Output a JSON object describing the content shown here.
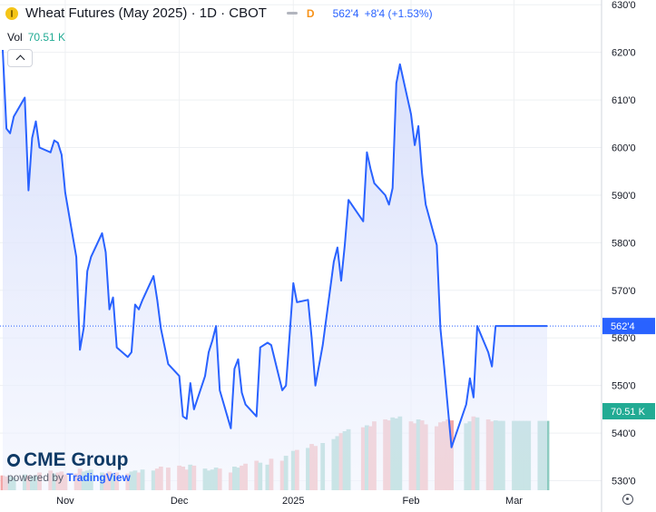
{
  "header": {
    "title": "Wheat Futures (May 2025) · 1D · CBOT",
    "interval_badge": "D",
    "last_price": "562'4",
    "change": "+8'4 (+1.53%)",
    "volume_label": "Vol",
    "volume_value": "70.51 K"
  },
  "branding": {
    "brand": "CME Group",
    "powered_by": "powered by",
    "provider": "TradingView"
  },
  "icons": {
    "symbol": "wheat-symbol-icon",
    "visibility": "eye-icon",
    "collapse": "chevron-up-icon",
    "settings": "gear-icon",
    "brand": "cme-globe-icon"
  },
  "colors": {
    "line": "#2962ff",
    "area_top": "#d4dcfb",
    "area_bottom": "#f1f4fe",
    "vol_up": "#8ccbc0",
    "vol_down": "#f2a6a6",
    "price_tag": "#2962ff",
    "vol_tag": "#22ab94",
    "grid": "#eef0f3",
    "axis_text": "#131722"
  },
  "chart_data": {
    "type": "line",
    "title": "Wheat Futures (May 2025) · 1D · CBOT",
    "xlabel": "",
    "ylabel": "",
    "x_tick_labels": [
      "Nov",
      "Dec",
      "2025",
      "Feb",
      "Mar"
    ],
    "y_tick_labels": [
      "530'0",
      "540'0",
      "550'0",
      "560'0",
      "570'0",
      "580'0",
      "590'0",
      "600'0",
      "610'0",
      "620'0",
      "630'0"
    ],
    "y_ticks": [
      530,
      540,
      550,
      560,
      570,
      580,
      590,
      600,
      610,
      620,
      630
    ],
    "ylim": [
      528,
      631
    ],
    "grid": true,
    "last_price": 562.5,
    "last_price_label": "562'4",
    "volume_label": "70.51 K",
    "x_range": [
      "2024-10-15",
      "2025-03-12"
    ],
    "price": {
      "dates": [
        "2024-10-15",
        "2024-10-16",
        "2024-10-17",
        "2024-10-18",
        "2024-10-21",
        "2024-10-22",
        "2024-10-23",
        "2024-10-24",
        "2024-10-25",
        "2024-10-28",
        "2024-10-29",
        "2024-10-30",
        "2024-10-31",
        "2024-11-01",
        "2024-11-04",
        "2024-11-05",
        "2024-11-06",
        "2024-11-07",
        "2024-11-08",
        "2024-11-11",
        "2024-11-12",
        "2024-11-13",
        "2024-11-14",
        "2024-11-15",
        "2024-11-18",
        "2024-11-19",
        "2024-11-20",
        "2024-11-21",
        "2024-11-22",
        "2024-11-25",
        "2024-11-26",
        "2024-11-27",
        "2024-11-29",
        "2024-12-02",
        "2024-12-03",
        "2024-12-04",
        "2024-12-05",
        "2024-12-06",
        "2024-12-09",
        "2024-12-10",
        "2024-12-11",
        "2024-12-12",
        "2024-12-13",
        "2024-12-16",
        "2024-12-17",
        "2024-12-18",
        "2024-12-19",
        "2024-12-20",
        "2024-12-23",
        "2024-12-24",
        "2024-12-26",
        "2024-12-27",
        "2024-12-30",
        "2024-12-31",
        "2025-01-02",
        "2025-01-03",
        "2025-01-06",
        "2025-01-07",
        "2025-01-08",
        "2025-01-10",
        "2025-01-13",
        "2025-01-14",
        "2025-01-15",
        "2025-01-16",
        "2025-01-17",
        "2025-01-21",
        "2025-01-22",
        "2025-01-23",
        "2025-01-24",
        "2025-01-27",
        "2025-01-28",
        "2025-01-29",
        "2025-01-30",
        "2025-01-31",
        "2025-02-03",
        "2025-02-04",
        "2025-02-05",
        "2025-02-06",
        "2025-02-07",
        "2025-02-10",
        "2025-02-11",
        "2025-02-12",
        "2025-02-13",
        "2025-02-14",
        "2025-02-18",
        "2025-02-19",
        "2025-02-20",
        "2025-02-21",
        "2025-02-24",
        "2025-02-25",
        "2025-02-26",
        "2025-02-27",
        "2025-02-28",
        "2025-03-03",
        "2025-03-04",
        "2025-03-05",
        "2025-03-06",
        "2025-03-07",
        "2025-03-10",
        "2025-03-11",
        "2025-03-12"
      ],
      "values": [
        620.5,
        604.0,
        603.0,
        606.5,
        610.5,
        591.0,
        602.0,
        605.5,
        600.0,
        599.0,
        601.5,
        601.0,
        598.5,
        590.5,
        577.0,
        557.5,
        562.0,
        574.0,
        577.0,
        582.0,
        578.0,
        566.0,
        568.5,
        558.0,
        556.0,
        557.0,
        567.0,
        566.0,
        568.0,
        573.0,
        568.0,
        562.0,
        554.5,
        552.0,
        543.5,
        543.0,
        550.5,
        545.0,
        552.0,
        557.0,
        559.5,
        562.5,
        549.0,
        541.0,
        553.5,
        555.5,
        548.5,
        546.0,
        543.5,
        558.0,
        559.0,
        558.5,
        549.0,
        550.0,
        571.5,
        567.5,
        568.0,
        560.0,
        550.0,
        558.5,
        576.0,
        579.0,
        572.0,
        579.5,
        589.0,
        584.5,
        599.0,
        595.5,
        592.5,
        590.0,
        588.0,
        591.5,
        613.5,
        617.5,
        607.0,
        600.5,
        604.5,
        594.5,
        588.0,
        579.5,
        562.0,
        554.0,
        545.5,
        537.0,
        546.0,
        551.5,
        547.5,
        562.5,
        557.0,
        554.0,
        562.5,
        562.5,
        562.5,
        562.5,
        562.5,
        562.5,
        562.5,
        562.5,
        562.5,
        562.5,
        562.5
      ]
    },
    "volume": {
      "dates": [
        "2024-10-15",
        "2024-10-16",
        "2024-10-17",
        "2024-10-18",
        "2024-10-21",
        "2024-10-22",
        "2024-10-23",
        "2024-10-24",
        "2024-10-25",
        "2024-10-28",
        "2024-10-29",
        "2024-10-30",
        "2024-10-31",
        "2024-11-01",
        "2024-11-04",
        "2024-11-05",
        "2024-11-06",
        "2024-11-07",
        "2024-11-08",
        "2024-11-11",
        "2024-11-12",
        "2024-11-13",
        "2024-11-14",
        "2024-11-15",
        "2024-11-18",
        "2024-11-19",
        "2024-11-20",
        "2024-11-21",
        "2024-11-22",
        "2024-11-25",
        "2024-11-26",
        "2024-11-27",
        "2024-11-29",
        "2024-12-02",
        "2024-12-03",
        "2024-12-04",
        "2024-12-05",
        "2024-12-06",
        "2024-12-09",
        "2024-12-10",
        "2024-12-11",
        "2024-12-12",
        "2024-12-13",
        "2024-12-16",
        "2024-12-17",
        "2024-12-18",
        "2024-12-19",
        "2024-12-20",
        "2024-12-23",
        "2024-12-24",
        "2024-12-26",
        "2024-12-27",
        "2024-12-30",
        "2024-12-31",
        "2025-01-02",
        "2025-01-03",
        "2025-01-06",
        "2025-01-07",
        "2025-01-08",
        "2025-01-10",
        "2025-01-13",
        "2025-01-14",
        "2025-01-15",
        "2025-01-16",
        "2025-01-17",
        "2025-01-21",
        "2025-01-22",
        "2025-01-23",
        "2025-01-24",
        "2025-01-27",
        "2025-01-28",
        "2025-01-29",
        "2025-01-30",
        "2025-01-31",
        "2025-02-03",
        "2025-02-04",
        "2025-02-05",
        "2025-02-06",
        "2025-02-07",
        "2025-02-10",
        "2025-02-11",
        "2025-02-12",
        "2025-02-13",
        "2025-02-14",
        "2025-02-18",
        "2025-02-19",
        "2025-02-20",
        "2025-02-21",
        "2025-02-24",
        "2025-02-25",
        "2025-02-26",
        "2025-02-27",
        "2025-02-28",
        "2025-03-03",
        "2025-03-04",
        "2025-03-05",
        "2025-03-06",
        "2025-03-07",
        "2025-03-10",
        "2025-03-11",
        "2025-03-12"
      ],
      "values": [
        15,
        14,
        14,
        13,
        16,
        15,
        14,
        15,
        18,
        20,
        17,
        18,
        19,
        16,
        17,
        22,
        19,
        20,
        21,
        18,
        17,
        19,
        16,
        18,
        17,
        19,
        20,
        18,
        21,
        20,
        22,
        24,
        23,
        25,
        24,
        21,
        26,
        25,
        22,
        20,
        21,
        23,
        22,
        18,
        24,
        23,
        25,
        27,
        30,
        28,
        26,
        32,
        30,
        35,
        40,
        41,
        43,
        47,
        45,
        48,
        52,
        55,
        58,
        60,
        62,
        64,
        66,
        65,
        70,
        72,
        71,
        74,
        73,
        75,
        70,
        68,
        72,
        71,
        67,
        65,
        69,
        70,
        72,
        71,
        68,
        70,
        75,
        74,
        72,
        70,
        71,
        70.51,
        70.51,
        70.51,
        70.51,
        70.51,
        70.51,
        70.51,
        70.51,
        70.51,
        70.51
      ],
      "direction": [
        "down",
        "down",
        "up",
        "up",
        "up",
        "down",
        "up",
        "up",
        "down",
        "down",
        "up",
        "down",
        "down",
        "down",
        "down",
        "down",
        "up",
        "up",
        "up",
        "up",
        "down",
        "down",
        "up",
        "down",
        "down",
        "up",
        "up",
        "down",
        "up",
        "up",
        "down",
        "down",
        "down",
        "down",
        "down",
        "down",
        "up",
        "down",
        "up",
        "up",
        "up",
        "up",
        "down",
        "down",
        "up",
        "up",
        "down",
        "down",
        "down",
        "up",
        "up",
        "down",
        "down",
        "up",
        "up",
        "down",
        "up",
        "down",
        "down",
        "up",
        "up",
        "up",
        "down",
        "up",
        "up",
        "down",
        "up",
        "down",
        "down",
        "down",
        "down",
        "up",
        "up",
        "up",
        "down",
        "down",
        "up",
        "down",
        "down",
        "down",
        "down",
        "down",
        "down",
        "down",
        "up",
        "up",
        "down",
        "up",
        "down",
        "down",
        "up",
        "up",
        "up",
        "up",
        "up",
        "up",
        "up",
        "up",
        "up",
        "up",
        "up"
      ]
    }
  }
}
